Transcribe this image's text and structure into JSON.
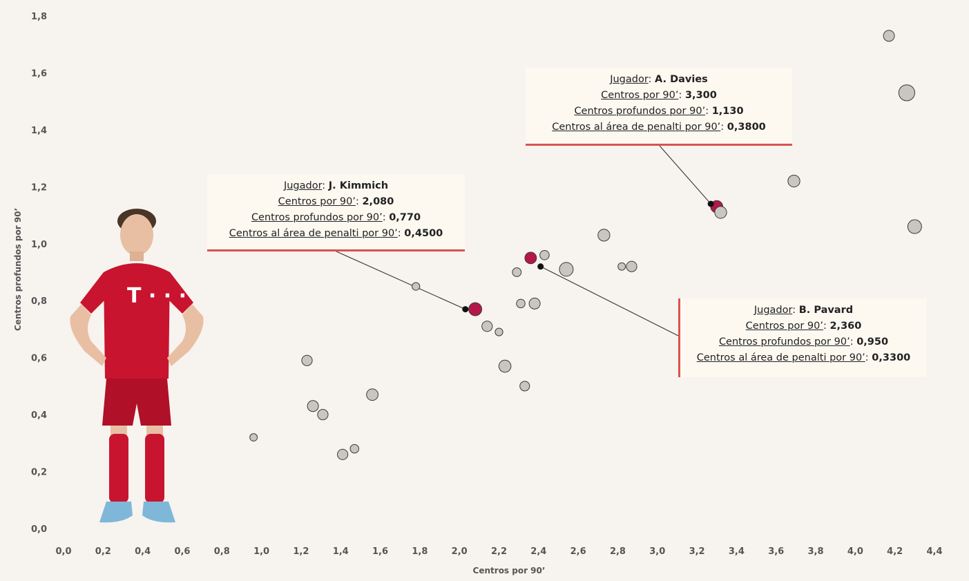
{
  "chart_data": {
    "type": "scatter",
    "title": "",
    "xlabel": "Centros por 90’",
    "ylabel": "Centros profundos por 90’",
    "xlim": [
      0,
      4.4
    ],
    "ylim": [
      0,
      1.8
    ],
    "x_ticks": [
      "0,0",
      "0,2",
      "0,4",
      "0,6",
      "0,8",
      "1,0",
      "1,2",
      "1,4",
      "1,6",
      "1,8",
      "2,0",
      "2,2",
      "2,4",
      "2,6",
      "2,8",
      "3,0",
      "3,2",
      "3,4",
      "3,6",
      "3,8",
      "4,0",
      "4,2",
      "4,4"
    ],
    "y_ticks": [
      "0,0",
      "0,2",
      "0,4",
      "0,6",
      "0,8",
      "1,0",
      "1,2",
      "1,4",
      "1,6",
      "1,8"
    ],
    "grid": false,
    "colors": {
      "highlight": "#b5174b",
      "default": "#c8c5c2",
      "stroke": "#3a3a3a",
      "marker": "#111111",
      "accent_line": "#d9534f"
    },
    "points": [
      {
        "x": 0.96,
        "y": 0.32,
        "size": 0.18
      },
      {
        "x": 1.23,
        "y": 0.59,
        "size": 0.45
      },
      {
        "x": 1.26,
        "y": 0.43,
        "size": 0.5
      },
      {
        "x": 1.31,
        "y": 0.4,
        "size": 0.45
      },
      {
        "x": 1.41,
        "y": 0.26,
        "size": 0.45
      },
      {
        "x": 1.47,
        "y": 0.28,
        "size": 0.28
      },
      {
        "x": 1.56,
        "y": 0.47,
        "size": 0.55
      },
      {
        "x": 1.78,
        "y": 0.85,
        "size": 0.2
      },
      {
        "x": 2.08,
        "y": 0.77,
        "size": 0.68,
        "highlight": true
      },
      {
        "x": 2.14,
        "y": 0.71,
        "size": 0.45
      },
      {
        "x": 2.2,
        "y": 0.69,
        "size": 0.2
      },
      {
        "x": 2.23,
        "y": 0.57,
        "size": 0.6
      },
      {
        "x": 2.29,
        "y": 0.9,
        "size": 0.3
      },
      {
        "x": 2.31,
        "y": 0.79,
        "size": 0.28
      },
      {
        "x": 2.33,
        "y": 0.5,
        "size": 0.38
      },
      {
        "x": 2.36,
        "y": 0.95,
        "size": 0.55,
        "highlight": true
      },
      {
        "x": 2.38,
        "y": 0.79,
        "size": 0.5
      },
      {
        "x": 2.43,
        "y": 0.96,
        "size": 0.35
      },
      {
        "x": 2.54,
        "y": 0.91,
        "size": 0.75
      },
      {
        "x": 2.73,
        "y": 1.03,
        "size": 0.58
      },
      {
        "x": 2.82,
        "y": 0.92,
        "size": 0.18
      },
      {
        "x": 2.87,
        "y": 0.92,
        "size": 0.45
      },
      {
        "x": 3.3,
        "y": 1.13,
        "size": 0.6,
        "highlight": true
      },
      {
        "x": 3.32,
        "y": 1.11,
        "size": 0.58
      },
      {
        "x": 3.69,
        "y": 1.22,
        "size": 0.58
      },
      {
        "x": 4.17,
        "y": 1.73,
        "size": 0.5
      },
      {
        "x": 4.26,
        "y": 1.53,
        "size": 0.95
      },
      {
        "x": 4.3,
        "y": 1.06,
        "size": 0.75
      }
    ],
    "markers": [
      {
        "x": 2.03,
        "y": 0.77
      },
      {
        "x": 2.41,
        "y": 0.92
      },
      {
        "x": 3.27,
        "y": 1.14
      }
    ],
    "annotations": [
      {
        "id": "kimmich",
        "anchor": {
          "x": 2.03,
          "y": 0.77
        },
        "player_label": "Jugador",
        "player": "J. Kimmich",
        "m1_label": "Centros por 90’",
        "m1": "2,080",
        "m2_label": "Centros profundos por 90’",
        "m2": "0,770",
        "m3_label": "Centros al área de penalti por 90’",
        "m3": "0,4500"
      },
      {
        "id": "davies",
        "anchor": {
          "x": 3.27,
          "y": 1.14
        },
        "player_label": "Jugador",
        "player": "A. Davies",
        "m1_label": "Centros por 90’",
        "m1": "3,300",
        "m2_label": "Centros profundos por 90’",
        "m2": "1,130",
        "m3_label": "Centros al área de penalti por 90’",
        "m3": "0,3800"
      },
      {
        "id": "pavard",
        "anchor": {
          "x": 2.41,
          "y": 0.92
        },
        "player_label": "Jugador",
        "player": "B. Pavard",
        "m1_label": "Centros por 90’",
        "m1": "2,360",
        "m2_label": "Centros profundos por 90’",
        "m2": "0,950",
        "m3_label": "Centros al área de penalti por 90’",
        "m3": "0,3300"
      }
    ]
  },
  "player_image": {
    "icon": "player-photo-icon",
    "shirt_logo": "T · · ·"
  }
}
